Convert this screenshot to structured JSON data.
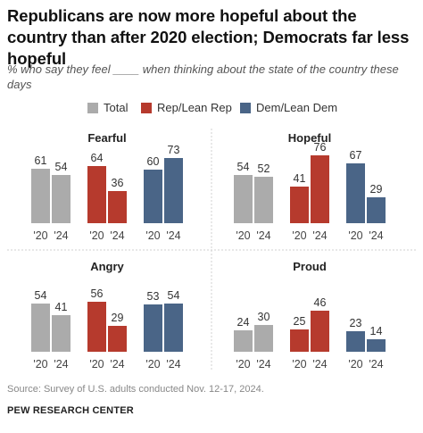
{
  "title": "Republicans are now more hopeful about the country than after 2020 election; Democrats far less hopeful",
  "subtitle": "% who say they feel ____ when thinking about the state of the country these days",
  "legend": [
    {
      "label": "Total",
      "color": "#ABABAB"
    },
    {
      "label": "Rep/Lean Rep",
      "color": "#B63A2D"
    },
    {
      "label": "Dem/Lean Dem",
      "color": "#4A6587"
    }
  ],
  "chart_data": [
    {
      "type": "bar",
      "title": "Fearful",
      "categories": [
        "'20",
        "'24"
      ],
      "series": [
        {
          "name": "Total",
          "values": [
            61,
            54
          ]
        },
        {
          "name": "Rep/Lean Rep",
          "values": [
            64,
            36
          ]
        },
        {
          "name": "Dem/Lean Dem",
          "values": [
            60,
            73
          ]
        }
      ]
    },
    {
      "type": "bar",
      "title": "Hopeful",
      "categories": [
        "'20",
        "'24"
      ],
      "series": [
        {
          "name": "Total",
          "values": [
            54,
            52
          ]
        },
        {
          "name": "Rep/Lean Rep",
          "values": [
            41,
            76
          ]
        },
        {
          "name": "Dem/Lean Dem",
          "values": [
            67,
            29
          ]
        }
      ]
    },
    {
      "type": "bar",
      "title": "Angry",
      "categories": [
        "'20",
        "'24"
      ],
      "series": [
        {
          "name": "Total",
          "values": [
            54,
            41
          ]
        },
        {
          "name": "Rep/Lean Rep",
          "values": [
            56,
            29
          ]
        },
        {
          "name": "Dem/Lean Dem",
          "values": [
            53,
            54
          ]
        }
      ]
    },
    {
      "type": "bar",
      "title": "Proud",
      "categories": [
        "'20",
        "'24"
      ],
      "series": [
        {
          "name": "Total",
          "values": [
            24,
            30
          ]
        },
        {
          "name": "Rep/Lean Rep",
          "values": [
            25,
            46
          ]
        },
        {
          "name": "Dem/Lean Dem",
          "values": [
            23,
            14
          ]
        }
      ]
    }
  ],
  "source": "Source: Survey of U.S. adults conducted Nov. 12-17, 2024.",
  "brand": "PEW RESEARCH CENTER"
}
